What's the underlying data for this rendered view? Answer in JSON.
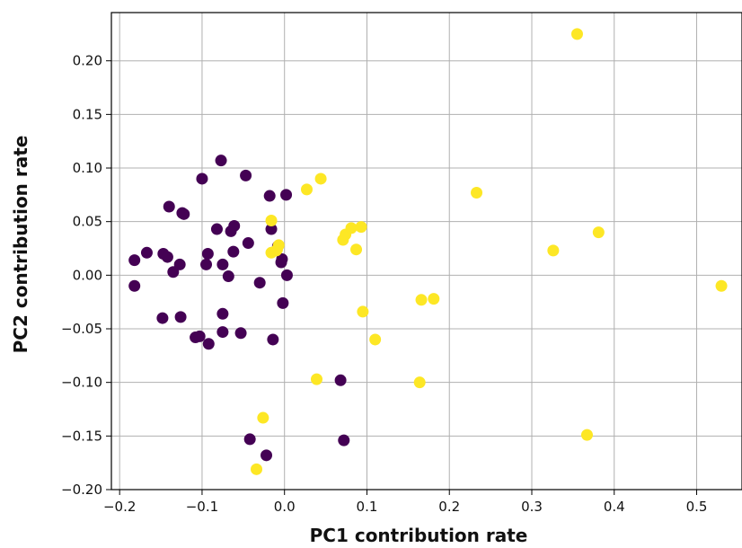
{
  "chart_data": {
    "type": "scatter",
    "title": "",
    "xlabel": "PC1 contribution rate",
    "ylabel": "PC2 contribution rate",
    "xlim": [
      -0.21,
      0.555
    ],
    "ylim": [
      -0.2,
      0.245
    ],
    "xticks": [
      -0.2,
      -0.1,
      0.0,
      0.1,
      0.2,
      0.3,
      0.4,
      0.5
    ],
    "xtick_labels": [
      "−0.2",
      "−0.1",
      "0.0",
      "0.1",
      "0.2",
      "0.3",
      "0.4",
      "0.5"
    ],
    "yticks": [
      -0.2,
      -0.15,
      -0.1,
      -0.05,
      0.0,
      0.05,
      0.1,
      0.15,
      0.2
    ],
    "ytick_labels": [
      "−0.20",
      "−0.15",
      "−0.10",
      "−0.05",
      "0.00",
      "0.05",
      "0.10",
      "0.15",
      "0.20"
    ],
    "grid": true,
    "legend": false,
    "series": [
      {
        "color": "#440154",
        "points": [
          [
            -0.182,
            0.014
          ],
          [
            -0.182,
            -0.01
          ],
          [
            -0.167,
            0.021
          ],
          [
            -0.148,
            -0.04
          ],
          [
            -0.147,
            0.02
          ],
          [
            -0.142,
            0.017
          ],
          [
            -0.14,
            0.064
          ],
          [
            -0.135,
            0.003
          ],
          [
            -0.127,
            0.01
          ],
          [
            -0.126,
            -0.039
          ],
          [
            -0.124,
            0.058
          ],
          [
            -0.122,
            0.057
          ],
          [
            -0.108,
            -0.058
          ],
          [
            -0.103,
            -0.057
          ],
          [
            -0.1,
            0.09
          ],
          [
            -0.095,
            0.01
          ],
          [
            -0.093,
            0.02
          ],
          [
            -0.092,
            -0.064
          ],
          [
            -0.082,
            0.043
          ],
          [
            -0.077,
            0.107
          ],
          [
            -0.075,
            0.01
          ],
          [
            -0.075,
            -0.053
          ],
          [
            -0.075,
            -0.036
          ],
          [
            -0.068,
            -0.001
          ],
          [
            -0.065,
            0.041
          ],
          [
            -0.062,
            0.022
          ],
          [
            -0.061,
            0.046
          ],
          [
            -0.053,
            -0.054
          ],
          [
            -0.047,
            0.093
          ],
          [
            -0.044,
            0.03
          ],
          [
            -0.042,
            -0.153
          ],
          [
            -0.03,
            -0.007
          ],
          [
            -0.022,
            -0.168
          ],
          [
            -0.018,
            0.074
          ],
          [
            -0.016,
            0.043
          ],
          [
            -0.014,
            -0.06
          ],
          [
            -0.008,
            0.027
          ],
          [
            -0.004,
            0.012
          ],
          [
            -0.003,
            0.015
          ],
          [
            -0.002,
            -0.026
          ],
          [
            0.002,
            0.075
          ],
          [
            0.003,
            0.0
          ],
          [
            0.068,
            -0.098
          ],
          [
            0.072,
            -0.154
          ]
        ]
      },
      {
        "color": "#fde725",
        "points": [
          [
            -0.034,
            -0.181
          ],
          [
            -0.026,
            -0.133
          ],
          [
            -0.016,
            0.051
          ],
          [
            -0.016,
            0.021
          ],
          [
            -0.01,
            0.023
          ],
          [
            -0.009,
            0.024
          ],
          [
            -0.007,
            0.028
          ],
          [
            0.027,
            0.08
          ],
          [
            0.039,
            -0.097
          ],
          [
            0.044,
            0.09
          ],
          [
            0.071,
            0.033
          ],
          [
            0.074,
            0.038
          ],
          [
            0.081,
            0.044
          ],
          [
            0.087,
            0.024
          ],
          [
            0.093,
            0.045
          ],
          [
            0.095,
            -0.034
          ],
          [
            0.11,
            -0.06
          ],
          [
            0.164,
            -0.1
          ],
          [
            0.166,
            -0.023
          ],
          [
            0.181,
            -0.022
          ],
          [
            0.233,
            0.077
          ],
          [
            0.326,
            0.023
          ],
          [
            0.355,
            0.225
          ],
          [
            0.367,
            -0.149
          ],
          [
            0.381,
            0.04
          ],
          [
            0.53,
            -0.01
          ]
        ]
      }
    ]
  }
}
